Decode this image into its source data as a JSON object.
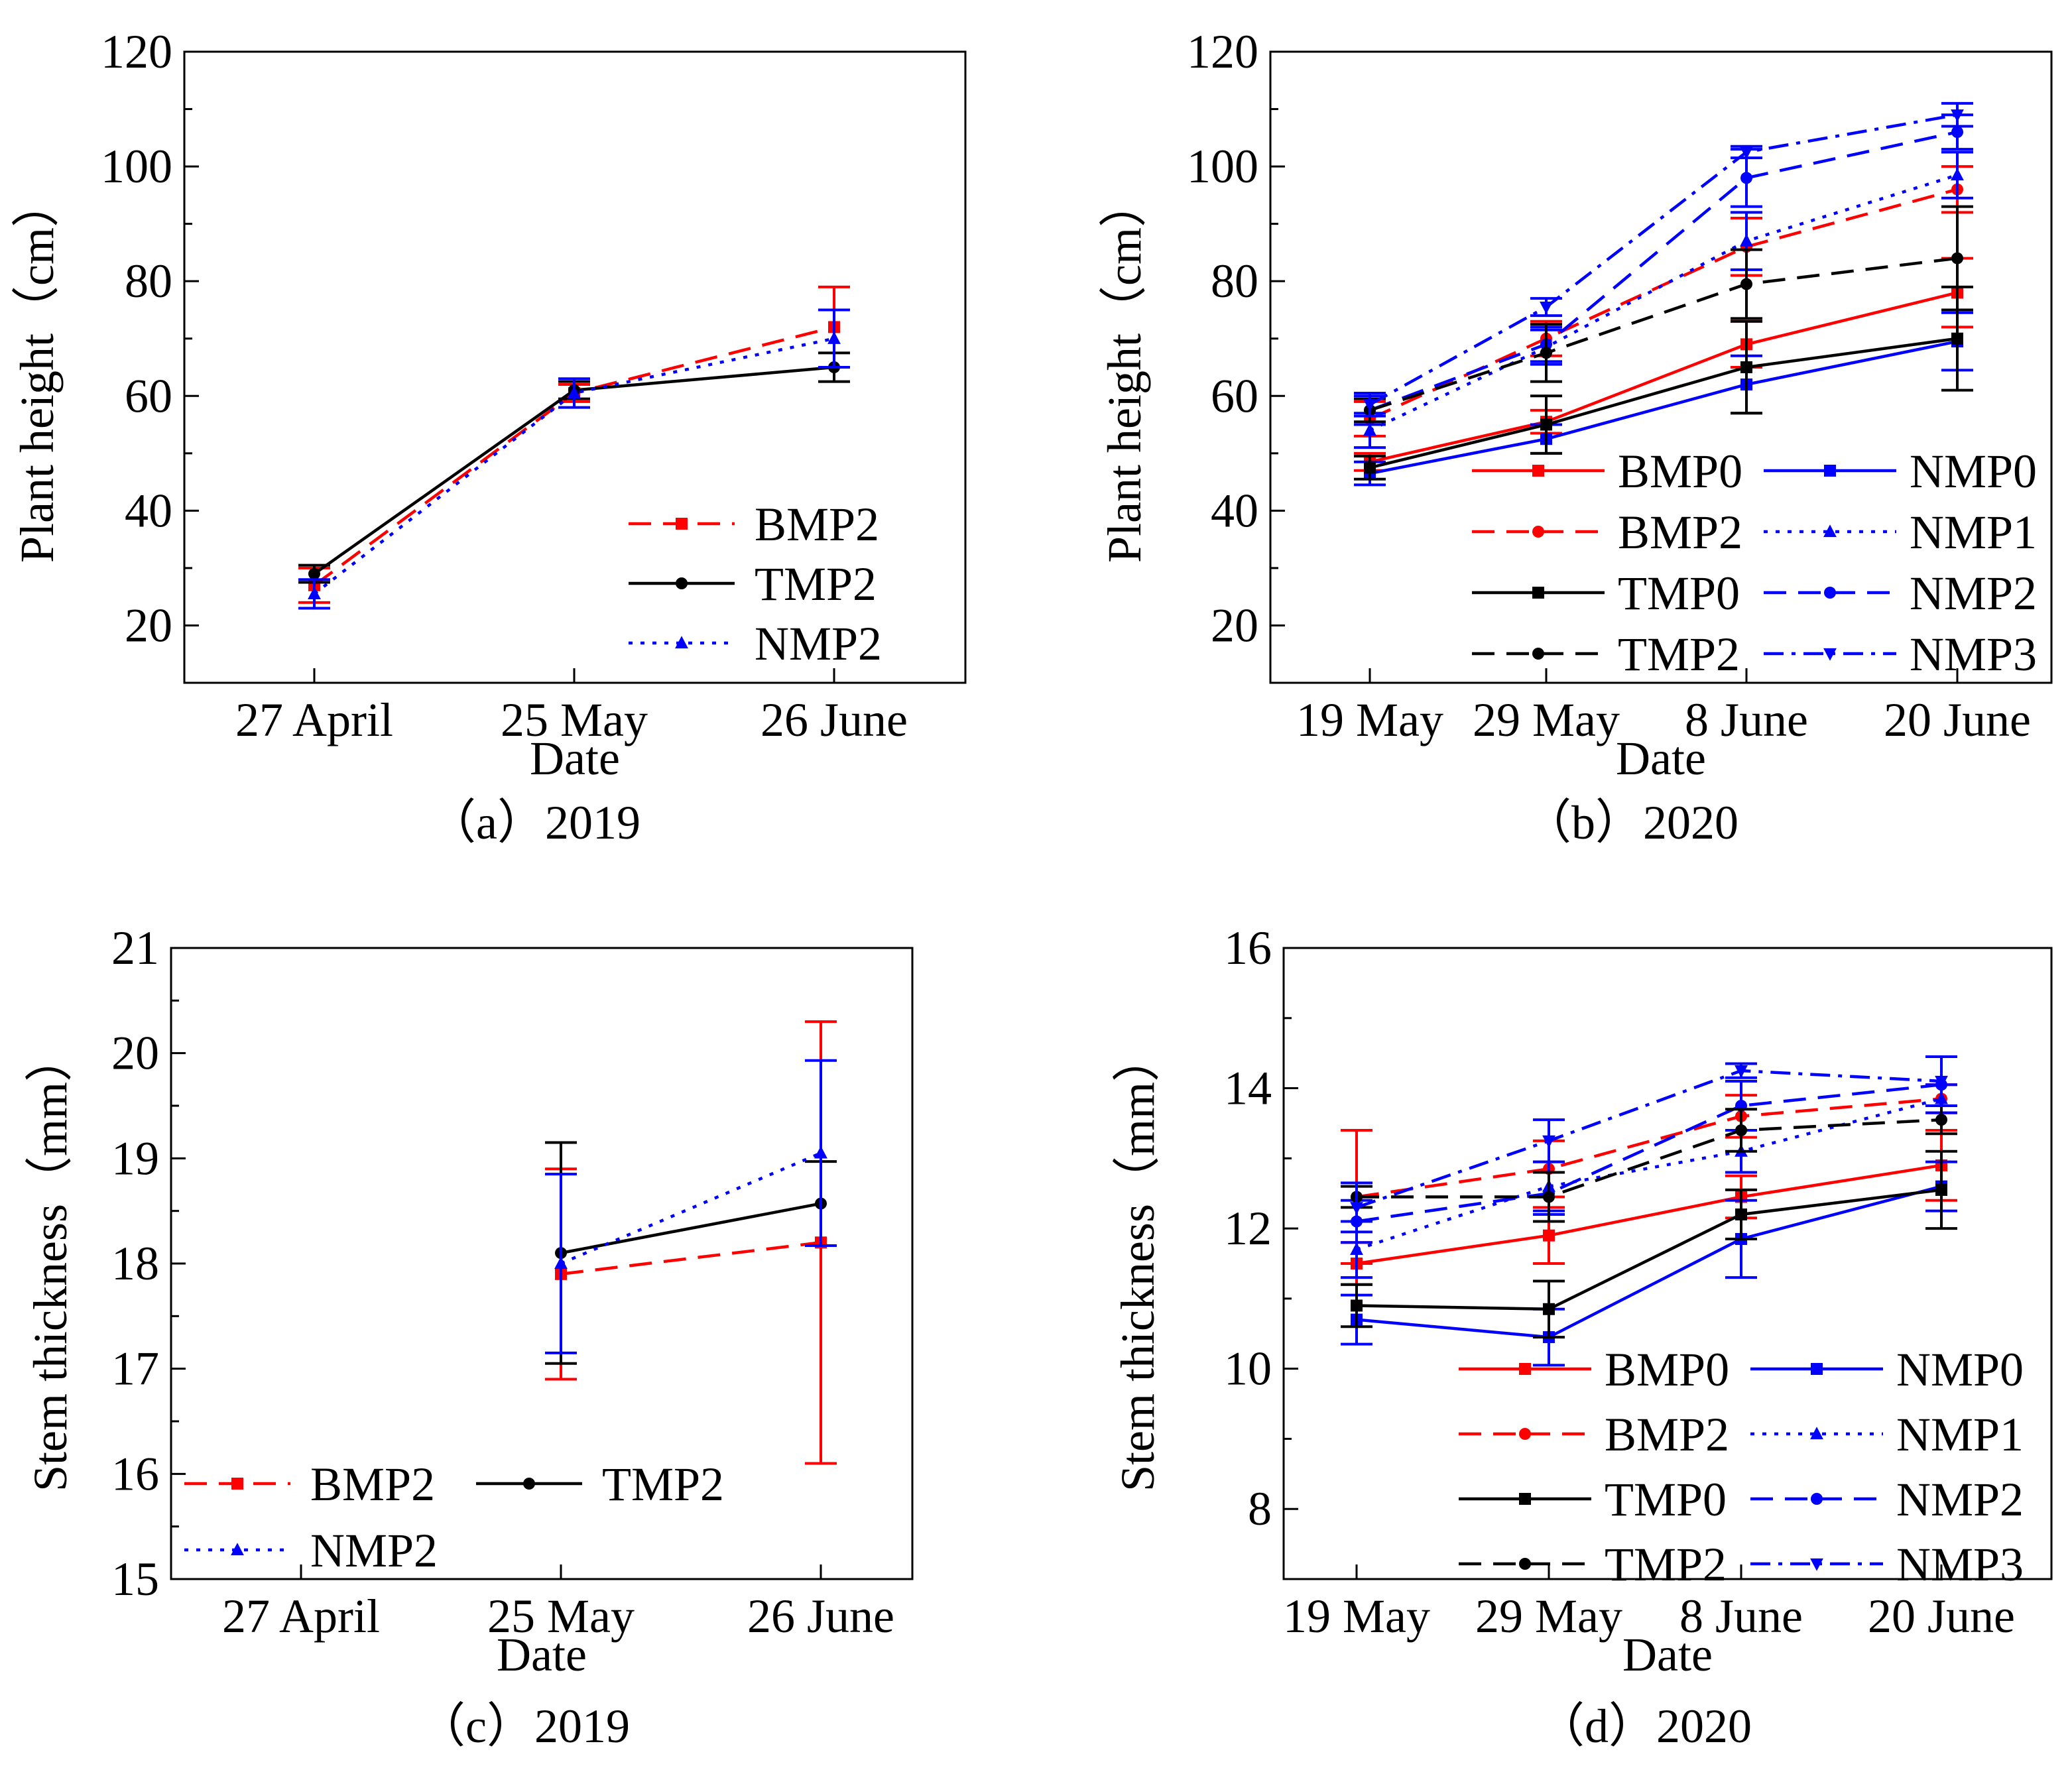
{
  "colors": {
    "red": "#ff0000",
    "black": "#000000",
    "blue": "#0000ff"
  },
  "chart_data": [
    {
      "id": "a",
      "type": "line",
      "caption": "（a）2019",
      "xlabel": "Date",
      "ylabel": "Plant height（cm）",
      "categories": [
        "27 April",
        "25 May",
        "26 June"
      ],
      "ylim": [
        10,
        120
      ],
      "yticks": [
        20,
        40,
        60,
        80,
        100,
        120
      ],
      "legend_position": "bottom-right",
      "series": [
        {
          "name": "BMP2",
          "color": "#ff0000",
          "dash": "dash",
          "marker": "square",
          "values": [
            27,
            60.5,
            72
          ],
          "errors": [
            3,
            1.5,
            7
          ]
        },
        {
          "name": "TMP2",
          "color": "#000000",
          "dash": "solid",
          "marker": "circle",
          "values": [
            29,
            61,
            65
          ],
          "errors": [
            1.5,
            1.5,
            2.5
          ]
        },
        {
          "name": "NMP2",
          "color": "#0000ff",
          "dash": "dot",
          "marker": "triangle",
          "values": [
            25.5,
            60.5,
            70
          ],
          "errors": [
            2.5,
            2.5,
            5
          ]
        }
      ]
    },
    {
      "id": "b",
      "type": "line",
      "caption": "（b）2020",
      "xlabel": "Date",
      "ylabel": "Plant height（cm）",
      "categories": [
        "19 May",
        "29 May",
        "8 June",
        "20 June"
      ],
      "ylim": [
        10,
        120
      ],
      "yticks": [
        20,
        40,
        60,
        80,
        100,
        120
      ],
      "legend_position": "bottom-right",
      "series": [
        {
          "name": "BMP0",
          "color": "#ff0000",
          "dash": "solid",
          "marker": "square",
          "values": [
            48.5,
            55.5,
            69,
            78
          ],
          "errors": [
            1.5,
            2,
            4,
            6
          ]
        },
        {
          "name": "NMP0",
          "color": "#0000ff",
          "dash": "solid",
          "marker": "square",
          "values": [
            46.5,
            52.5,
            62,
            69.5
          ],
          "errors": [
            2,
            2.5,
            5,
            5
          ]
        },
        {
          "name": "BMP2",
          "color": "#ff0000",
          "dash": "dash",
          "marker": "circle",
          "values": [
            56,
            70,
            86,
            96
          ],
          "errors": [
            3,
            3,
            5,
            4
          ]
        },
        {
          "name": "NMP1",
          "color": "#0000ff",
          "dash": "dot",
          "marker": "triangle",
          "values": [
            54,
            68.5,
            87,
            98.5
          ],
          "errors": [
            3,
            3,
            5,
            4
          ]
        },
        {
          "name": "TMP0",
          "color": "#000000",
          "dash": "solid",
          "marker": "square",
          "values": [
            47.5,
            55,
            65,
            70
          ],
          "errors": [
            2,
            5,
            8,
            9
          ]
        },
        {
          "name": "NMP2",
          "color": "#0000ff",
          "dash": "dash",
          "marker": "circle",
          "values": [
            57.5,
            69,
            98,
            106
          ],
          "errors": [
            2.5,
            3,
            5,
            3
          ]
        },
        {
          "name": "TMP2",
          "color": "#000000",
          "dash": "dash",
          "marker": "circle",
          "values": [
            57.5,
            67.5,
            79.5,
            84
          ],
          "errors": [
            2,
            5,
            6,
            9
          ]
        },
        {
          "name": "NMP3",
          "color": "#0000ff",
          "dash": "dashdot",
          "marker": "triangle-down",
          "values": [
            58.5,
            75.5,
            102.5,
            109
          ],
          "errors": [
            2,
            1.5,
            1,
            2
          ]
        }
      ]
    },
    {
      "id": "c",
      "type": "line",
      "caption": "（c）2019",
      "xlabel": "Date",
      "ylabel": "Stem thickness（mm）",
      "categories": [
        "27 April",
        "25 May",
        "26 June"
      ],
      "ylim": [
        15,
        21
      ],
      "yticks": [
        15,
        16,
        17,
        18,
        19,
        20,
        21
      ],
      "legend_position": "bottom-left",
      "series": [
        {
          "name": "BMP2",
          "color": "#ff0000",
          "dash": "dash",
          "marker": "square",
          "values": [
            null,
            17.9,
            18.2
          ],
          "errors": [
            null,
            1.0,
            2.1
          ]
        },
        {
          "name": "TMP2",
          "color": "#000000",
          "dash": "solid",
          "marker": "circle",
          "values": [
            null,
            18.1,
            18.57
          ],
          "errors": [
            null,
            1.05,
            0.4
          ]
        },
        {
          "name": "NMP2",
          "color": "#0000ff",
          "dash": "dot",
          "marker": "triangle",
          "values": [
            null,
            18.0,
            19.05
          ],
          "errors": [
            null,
            0.85,
            0.88
          ]
        }
      ]
    },
    {
      "id": "d",
      "type": "line",
      "caption": "（d）2020",
      "xlabel": "Date",
      "ylabel": "Stem thickness（mm）",
      "categories": [
        "19 May",
        "29 May",
        "8 June",
        "20 June"
      ],
      "ylim": [
        7,
        16
      ],
      "yticks": [
        8,
        10,
        12,
        14,
        16
      ],
      "legend_position": "bottom-right",
      "series": [
        {
          "name": "BMP0",
          "color": "#ff0000",
          "dash": "solid",
          "marker": "square",
          "values": [
            11.5,
            11.9,
            12.45,
            12.9
          ],
          "errors": [
            0.3,
            0.4,
            0.3,
            0.5
          ]
        },
        {
          "name": "NMP0",
          "color": "#0000ff",
          "dash": "solid",
          "marker": "square",
          "values": [
            10.7,
            10.45,
            11.85,
            12.6
          ],
          "errors": [
            0.35,
            0.4,
            0.55,
            0.35
          ]
        },
        {
          "name": "BMP2",
          "color": "#ff0000",
          "dash": "dash",
          "marker": "circle",
          "values": [
            12.45,
            12.85,
            13.6,
            13.85
          ],
          "errors": [
            0.95,
            0.4,
            0.3,
            0.2
          ]
        },
        {
          "name": "NMP1",
          "color": "#0000ff",
          "dash": "dot",
          "marker": "triangle",
          "values": [
            11.7,
            12.6,
            13.1,
            13.85
          ],
          "errors": [
            0.4,
            0.35,
            0.3,
            0.2
          ]
        },
        {
          "name": "TMP0",
          "color": "#000000",
          "dash": "solid",
          "marker": "square",
          "values": [
            10.9,
            10.85,
            12.2,
            12.55
          ],
          "errors": [
            0.3,
            0.4,
            0.35,
            0.55
          ]
        },
        {
          "name": "NMP2",
          "color": "#0000ff",
          "dash": "dash",
          "marker": "circle",
          "values": [
            12.1,
            12.5,
            13.75,
            14.05
          ],
          "errors": [
            0.3,
            0.3,
            0.35,
            0.4
          ]
        },
        {
          "name": "TMP2",
          "color": "#000000",
          "dash": "dash",
          "marker": "circle",
          "values": [
            12.45,
            12.45,
            13.4,
            13.55
          ],
          "errors": [
            0.15,
            0.35,
            0.3,
            0.2
          ]
        },
        {
          "name": "NMP3",
          "color": "#0000ff",
          "dash": "dashdot",
          "marker": "triangle-down",
          "values": [
            12.3,
            13.25,
            14.25,
            14.1
          ],
          "errors": [
            0.35,
            0.3,
            0.1,
            0.35
          ]
        }
      ]
    }
  ]
}
